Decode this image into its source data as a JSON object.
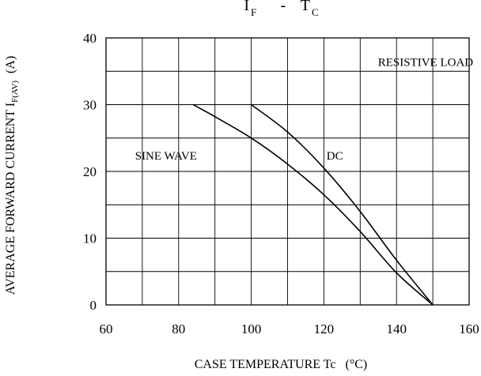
{
  "chart_data": {
    "type": "line",
    "title": {
      "left_main": "I",
      "left_sub": "F",
      "separator": "-",
      "right_main": "T",
      "right_sub": "C"
    },
    "xlabel": {
      "text": "CASE TEMPERATURE Tc",
      "unit": "(°C)"
    },
    "ylabel": {
      "main": "AVERAGE FORWARD CURRENT I",
      "sub": "F(AV)",
      "unit": "(A)"
    },
    "xlim": [
      60,
      160
    ],
    "ylim": [
      0,
      40
    ],
    "x_ticks": [
      60,
      80,
      100,
      120,
      140,
      160
    ],
    "y_ticks": [
      0,
      10,
      20,
      30,
      40
    ],
    "x_minor_step": 10,
    "y_minor_step": 5,
    "grid": true,
    "annotations": [
      "RESISTIVE LOAD",
      "SINE WAVE",
      "DC"
    ],
    "series": [
      {
        "name": "SINE WAVE",
        "x": [
          84,
          90,
          100,
          110,
          120,
          130,
          140,
          150
        ],
        "y": [
          30,
          28.2,
          25,
          21.1,
          16.5,
          11,
          4.8,
          0
        ]
      },
      {
        "name": "DC",
        "x": [
          100,
          110,
          120,
          130,
          140,
          150
        ],
        "y": [
          30,
          25.9,
          20.5,
          14,
          6.7,
          0
        ]
      }
    ]
  }
}
